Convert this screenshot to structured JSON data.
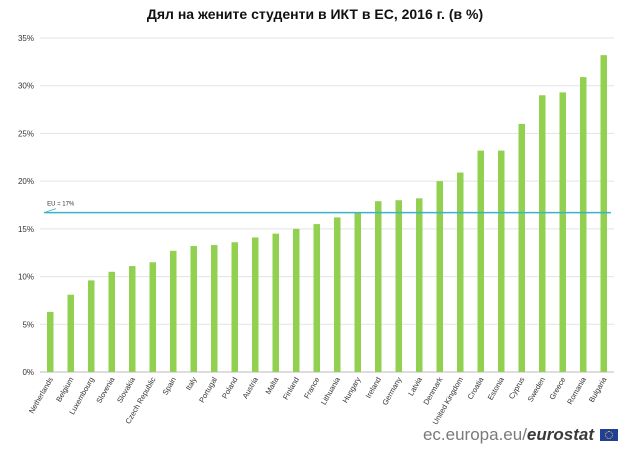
{
  "chart_data": {
    "type": "bar",
    "title": "Дял на жените студенти в ИКТ в ЕС, 2016 г. (в %)",
    "xlabel": "",
    "ylabel": "",
    "ylim": [
      0,
      35
    ],
    "yticks": [
      0,
      5,
      10,
      15,
      20,
      25,
      30,
      35
    ],
    "ytick_labels": [
      "0%",
      "5%",
      "10%",
      "15%",
      "20%",
      "25%",
      "30%",
      "35%"
    ],
    "grid": true,
    "categories": [
      "Netherlands",
      "Belgium",
      "Luxembourg",
      "Slovenia",
      "Slovakia",
      "Czech Republic",
      "Spain",
      "Italy",
      "Portugal",
      "Poland",
      "Austria",
      "Malta",
      "Finland",
      "France",
      "Lithuania",
      "Hungary",
      "Ireland",
      "Germany",
      "Latvia",
      "Denmark",
      "United Kingdom",
      "Croatia",
      "Estonia",
      "Cyprus",
      "Sweden",
      "Greece",
      "Romania",
      "Bulgaria"
    ],
    "values": [
      6.3,
      8.1,
      9.6,
      10.5,
      11.1,
      11.5,
      12.7,
      13.2,
      13.3,
      13.6,
      14.1,
      14.5,
      15.0,
      15.5,
      16.2,
      16.7,
      17.9,
      18.0,
      18.2,
      20.0,
      20.9,
      23.2,
      23.2,
      26.0,
      29.0,
      29.3,
      30.9,
      33.2
    ],
    "bar_color": "#92d050",
    "reference_line": {
      "label": "EU = 17%",
      "value": 16.7,
      "color": "#3ab3c8"
    }
  },
  "footer": {
    "url": "ec.europa.eu/",
    "brand": "eurostat",
    "flag_icon": "eu-flag-icon"
  }
}
